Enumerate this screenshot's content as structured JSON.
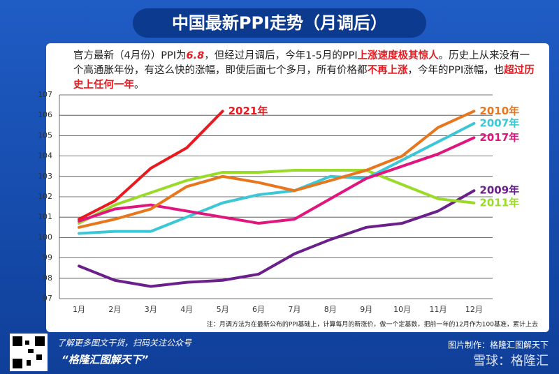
{
  "chart_data": {
    "type": "line",
    "title": "中国最新PPI走势（月调后）",
    "note": [
      {
        "text": "官方最新（4月份）PPI为",
        "color": "#222222"
      },
      {
        "text": "6.8",
        "color": "#e8191f"
      },
      {
        "text": "，但经过月调后，今年1-5月的PPI",
        "color": "#222222"
      },
      {
        "text": "上涨速度极其惊人",
        "color": "#e8191f"
      },
      {
        "text": "。历史上从来没有一个高通胀年份，有这么快的涨幅，即使后面七个多月，所有价格都",
        "color": "#222222"
      },
      {
        "text": "不再上涨",
        "color": "#e8191f"
      },
      {
        "text": "，今年的PPI涨幅，也",
        "color": "#222222"
      },
      {
        "text": "超过历史上任何一年",
        "color": "#e8191f"
      },
      {
        "text": "。",
        "color": "#222222"
      }
    ],
    "categories": [
      "1月",
      "2月",
      "3月",
      "4月",
      "5月",
      "6月",
      "7月",
      "8月",
      "9月",
      "10月",
      "11月",
      "12月"
    ],
    "series": [
      {
        "name": "2009年",
        "color": "#6a1f8a",
        "values": [
          98.6,
          97.9,
          97.6,
          97.8,
          97.9,
          98.2,
          99.2,
          99.9,
          100.5,
          100.7,
          101.3,
          102.3
        ]
      },
      {
        "name": "2011年",
        "color": "#9adb2a",
        "values": [
          100.7,
          101.6,
          102.2,
          102.8,
          103.2,
          103.2,
          103.3,
          103.3,
          103.3,
          102.6,
          101.9,
          101.7
        ]
      },
      {
        "name": "2007年",
        "color": "#3cc7d6",
        "values": [
          100.2,
          100.3,
          100.3,
          101.0,
          101.7,
          102.1,
          102.3,
          103.0,
          102.9,
          103.8,
          104.7,
          105.6
        ]
      },
      {
        "name": "2017年",
        "color": "#e0157e",
        "values": [
          100.8,
          101.4,
          101.6,
          101.3,
          101.0,
          100.7,
          100.9,
          101.9,
          102.9,
          103.5,
          104.1,
          104.9
        ]
      },
      {
        "name": "2010年",
        "color": "#e8761c",
        "values": [
          100.5,
          100.9,
          101.4,
          102.5,
          103.0,
          102.7,
          102.3,
          102.8,
          103.3,
          104.0,
          105.4,
          106.2
        ]
      },
      {
        "name": "2021年",
        "color": "#e8191f",
        "values": [
          100.9,
          101.8,
          103.4,
          104.4,
          106.2,
          null,
          null,
          null,
          null,
          null,
          null,
          null
        ]
      }
    ],
    "ylim": [
      97,
      107
    ],
    "yticks": [
      97,
      98,
      99,
      100,
      101,
      102,
      103,
      104,
      105,
      106,
      107
    ],
    "grid": true,
    "footnote": "注：月调方法为在最新公布的PPI基础上，计算每月的新涨价，做一个定基数，把前一年的12月作为100基准，累计上去",
    "footer": {
      "promo": "了解更多图文干货，扫码关注公众号",
      "account": "“格隆汇图解天下”",
      "maker": "图片制作：格隆汇图解天下",
      "watermark": "雪球：格隆汇"
    }
  }
}
